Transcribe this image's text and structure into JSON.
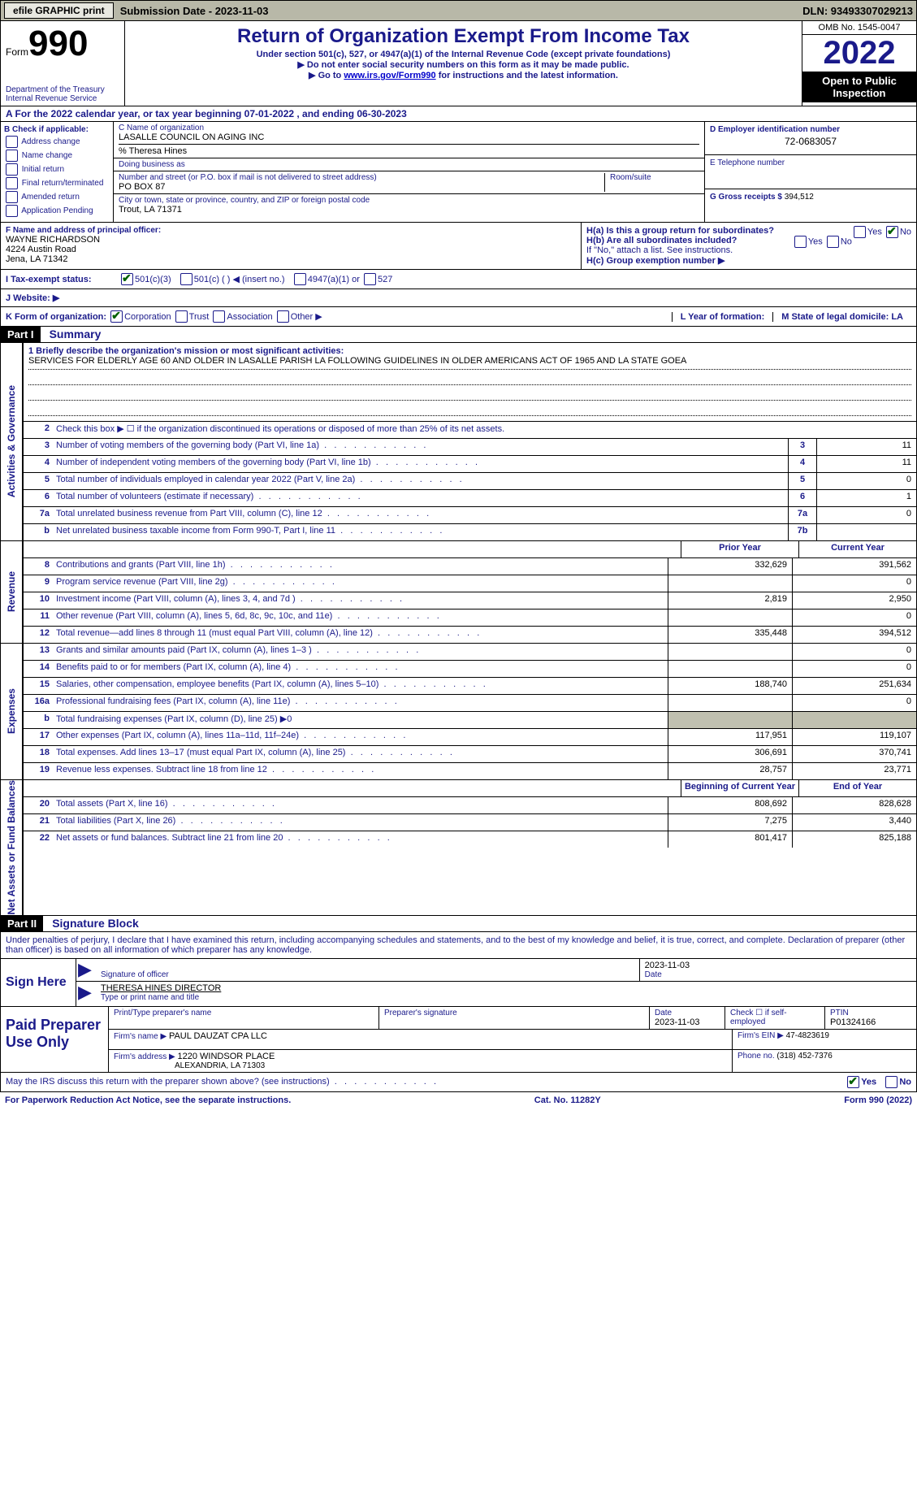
{
  "top": {
    "efile": "efile GRAPHIC print",
    "submission": "Submission Date - 2023-11-03",
    "dln": "DLN: 93493307029213"
  },
  "header": {
    "form_label": "Form",
    "form_number": "990",
    "dept": "Department of the Treasury",
    "irs": "Internal Revenue Service",
    "title": "Return of Organization Exempt From Income Tax",
    "sub1": "Under section 501(c), 527, or 4947(a)(1) of the Internal Revenue Code (except private foundations)",
    "sub2": "▶ Do not enter social security numbers on this form as it may be made public.",
    "sub3_prefix": "▶ Go to ",
    "sub3_link": "www.irs.gov/Form990",
    "sub3_suffix": " for instructions and the latest information.",
    "omb": "OMB No. 1545-0047",
    "year": "2022",
    "open": "Open to Public Inspection"
  },
  "rowA": "A For the 2022 calendar year, or tax year beginning 07-01-2022    , and ending 06-30-2023",
  "boxB": {
    "title": "B Check if applicable:",
    "opts": [
      "Address change",
      "Name change",
      "Initial return",
      "Final return/terminated",
      "Amended return",
      "Application Pending"
    ]
  },
  "boxC": {
    "label_name": "C Name of organization",
    "org_name": "LASALLE COUNCIL ON AGING INC",
    "care_of": "% Theresa Hines",
    "dba_label": "Doing business as",
    "addr_label": "Number and street (or P.O. box if mail is not delivered to street address)",
    "room_label": "Room/suite",
    "addr": "PO BOX 87",
    "city_label": "City or town, state or province, country, and ZIP or foreign postal code",
    "city": "Trout, LA  71371"
  },
  "boxD": {
    "label": "D Employer identification number",
    "val": "72-0683057"
  },
  "boxE": {
    "label": "E Telephone number",
    "val": ""
  },
  "boxG": {
    "label": "G Gross receipts $",
    "val": "394,512"
  },
  "boxF": {
    "label": "F  Name and address of principal officer:",
    "name": "WAYNE RICHARDSON",
    "addr1": "4224 Austin Road",
    "addr2": "Jena, LA  71342"
  },
  "boxH": {
    "a": "H(a)  Is this a group return for subordinates?",
    "b": "H(b)  Are all subordinates included?",
    "b2": "If \"No,\" attach a list. See instructions.",
    "c": "H(c)  Group exemption number ▶",
    "yes": "Yes",
    "no": "No"
  },
  "statusI": {
    "label": "I  Tax-exempt status:",
    "o1": "501(c)(3)",
    "o2": "501(c) (   ) ◀ (insert no.)",
    "o3": "4947(a)(1) or",
    "o4": "527"
  },
  "rowJ": {
    "label": "J  Website: ▶"
  },
  "rowK": {
    "label": "K Form of organization:",
    "o1": "Corporation",
    "o2": "Trust",
    "o3": "Association",
    "o4": "Other ▶",
    "L": "L Year of formation:",
    "M": "M State of legal domicile: LA"
  },
  "part1": {
    "num": "Part I",
    "title": "Summary"
  },
  "mission": {
    "label": "1  Briefly describe the organization's mission or most significant activities:",
    "text": "SERVICES FOR ELDERLY AGE 60 AND OLDER IN LASALLE PARISH LA FOLLOWING GUIDELINES IN OLDER AMERICANS ACT OF 1965 AND LA STATE GOEA"
  },
  "line2": "Check this box ▶ ☐  if the organization discontinued its operations or disposed of more than 25% of its net assets.",
  "sections": {
    "gov": "Activities & Governance",
    "rev": "Revenue",
    "exp": "Expenses",
    "net": "Net Assets or Fund Balances"
  },
  "gov_lines": [
    {
      "n": "3",
      "label": "Number of voting members of the governing body (Part VI, line 1a)",
      "box": "3",
      "val": "11"
    },
    {
      "n": "4",
      "label": "Number of independent voting members of the governing body (Part VI, line 1b)",
      "box": "4",
      "val": "11"
    },
    {
      "n": "5",
      "label": "Total number of individuals employed in calendar year 2022 (Part V, line 2a)",
      "box": "5",
      "val": "0"
    },
    {
      "n": "6",
      "label": "Total number of volunteers (estimate if necessary)",
      "box": "6",
      "val": "1"
    },
    {
      "n": "7a",
      "label": "Total unrelated business revenue from Part VIII, column (C), line 12",
      "box": "7a",
      "val": "0"
    },
    {
      "n": "b",
      "label": "Net unrelated business taxable income from Form 990-T, Part I, line 11",
      "box": "7b",
      "val": ""
    }
  ],
  "col_hdr": {
    "prior": "Prior Year",
    "current": "Current Year",
    "boy": "Beginning of Current Year",
    "eoy": "End of Year"
  },
  "rev_lines": [
    {
      "n": "8",
      "label": "Contributions and grants (Part VIII, line 1h)",
      "p": "332,629",
      "c": "391,562"
    },
    {
      "n": "9",
      "label": "Program service revenue (Part VIII, line 2g)",
      "p": "",
      "c": "0"
    },
    {
      "n": "10",
      "label": "Investment income (Part VIII, column (A), lines 3, 4, and 7d )",
      "p": "2,819",
      "c": "2,950"
    },
    {
      "n": "11",
      "label": "Other revenue (Part VIII, column (A), lines 5, 6d, 8c, 9c, 10c, and 11e)",
      "p": "",
      "c": "0"
    },
    {
      "n": "12",
      "label": "Total revenue—add lines 8 through 11 (must equal Part VIII, column (A), line 12)",
      "p": "335,448",
      "c": "394,512"
    }
  ],
  "exp_lines": [
    {
      "n": "13",
      "label": "Grants and similar amounts paid (Part IX, column (A), lines 1–3 )",
      "p": "",
      "c": "0"
    },
    {
      "n": "14",
      "label": "Benefits paid to or for members (Part IX, column (A), line 4)",
      "p": "",
      "c": "0"
    },
    {
      "n": "15",
      "label": "Salaries, other compensation, employee benefits (Part IX, column (A), lines 5–10)",
      "p": "188,740",
      "c": "251,634"
    },
    {
      "n": "16a",
      "label": "Professional fundraising fees (Part IX, column (A), line 11e)",
      "p": "",
      "c": "0"
    },
    {
      "n": "b",
      "label": "Total fundraising expenses (Part IX, column (D), line 25) ▶0",
      "p": "grey",
      "c": "grey"
    },
    {
      "n": "17",
      "label": "Other expenses (Part IX, column (A), lines 11a–11d, 11f–24e)",
      "p": "117,951",
      "c": "119,107"
    },
    {
      "n": "18",
      "label": "Total expenses. Add lines 13–17 (must equal Part IX, column (A), line 25)",
      "p": "306,691",
      "c": "370,741"
    },
    {
      "n": "19",
      "label": "Revenue less expenses. Subtract line 18 from line 12",
      "p": "28,757",
      "c": "23,771"
    }
  ],
  "net_lines": [
    {
      "n": "20",
      "label": "Total assets (Part X, line 16)",
      "p": "808,692",
      "c": "828,628"
    },
    {
      "n": "21",
      "label": "Total liabilities (Part X, line 26)",
      "p": "7,275",
      "c": "3,440"
    },
    {
      "n": "22",
      "label": "Net assets or fund balances. Subtract line 21 from line 20",
      "p": "801,417",
      "c": "825,188"
    }
  ],
  "part2": {
    "num": "Part II",
    "title": "Signature Block"
  },
  "penalty": "Under penalties of perjury, I declare that I have examined this return, including accompanying schedules and statements, and to the best of my knowledge and belief, it is true, correct, and complete. Declaration of preparer (other than officer) is based on all information of which preparer has any knowledge.",
  "sign": {
    "here": "Sign Here",
    "sig_officer": "Signature of officer",
    "date": "Date",
    "date_val": "2023-11-03",
    "name_title": "THERESA HINES  DIRECTOR",
    "type_label": "Type or print name and title"
  },
  "paid": {
    "label": "Paid Preparer Use Only",
    "prep_name_label": "Print/Type preparer's name",
    "prep_sig_label": "Preparer's signature",
    "prep_date_label": "Date",
    "prep_date": "2023-11-03",
    "check_label": "Check ☐ if self-employed",
    "ptin_label": "PTIN",
    "ptin": "P01324166",
    "firm_name_label": "Firm's name    ▶",
    "firm_name": "PAUL DAUZAT CPA LLC",
    "firm_ein_label": "Firm's EIN ▶",
    "firm_ein": "47-4823619",
    "firm_addr_label": "Firm's address ▶",
    "firm_addr1": "1220 WINDSOR PLACE",
    "firm_addr2": "ALEXANDRIA, LA  71303",
    "phone_label": "Phone no.",
    "phone": "(318) 452-7376"
  },
  "discuss": {
    "text": "May the IRS discuss this return with the preparer shown above? (see instructions)",
    "yes": "Yes",
    "no": "No"
  },
  "footer": {
    "left": "For Paperwork Reduction Act Notice, see the separate instructions.",
    "mid": "Cat. No. 11282Y",
    "right": "Form 990 (2022)"
  }
}
